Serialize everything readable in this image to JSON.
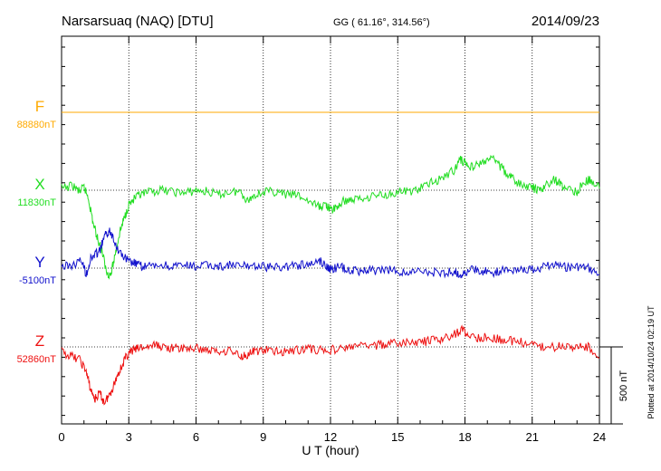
{
  "header": {
    "station": "Narsarsuaq (NAQ)  [DTU]",
    "coords": "GG ( 61.16°, 314.56°)",
    "date": "2014/09/23"
  },
  "side_note": "Plotted at 2014/10/24 02:19 UT",
  "chart_data": {
    "type": "line",
    "xlabel": "U T (hour)",
    "xlim": [
      0,
      24
    ],
    "xticks": [
      0,
      3,
      6,
      9,
      12,
      15,
      18,
      21,
      24
    ],
    "grid": "dotted vertical every 3 h; dotted baseline per component",
    "scale_bar": {
      "label": "500 nT",
      "value_nT": 500
    },
    "series": [
      {
        "name": "F",
        "baseline_label": "88880nT",
        "baseline_nT": 88880,
        "color": "#ffaa00",
        "x": [
          0,
          24
        ],
        "y": [
          88880,
          88880
        ]
      },
      {
        "name": "X",
        "baseline_label": "11830nT",
        "baseline_nT": 11830,
        "color": "#22dd22",
        "x": [
          0,
          0.5,
          0.8,
          1.0,
          1.2,
          1.4,
          1.6,
          1.8,
          2.0,
          2.2,
          2.4,
          2.6,
          2.8,
          3.0,
          3.3,
          3.6,
          4.0,
          4.5,
          5.0,
          5.5,
          6.0,
          6.5,
          7.0,
          7.5,
          8.0,
          8.3,
          8.6,
          9.0,
          9.5,
          10.0,
          10.5,
          11.0,
          11.5,
          11.8,
          12.0,
          12.3,
          12.6,
          13.0,
          13.5,
          14.0,
          14.5,
          15.0,
          15.5,
          16.0,
          16.5,
          17.0,
          17.5,
          17.8,
          18.0,
          18.3,
          18.6,
          19.0,
          19.3,
          19.6,
          20.0,
          20.3,
          20.6,
          21.0,
          21.3,
          21.6,
          22.0,
          22.3,
          22.6,
          23.0,
          23.3,
          23.6,
          24.0
        ],
        "y": [
          11840,
          11860,
          11820,
          11850,
          11780,
          11620,
          11520,
          11440,
          11300,
          11280,
          11420,
          11560,
          11650,
          11740,
          11780,
          11800,
          11820,
          11830,
          11820,
          11810,
          11830,
          11820,
          11800,
          11820,
          11820,
          11760,
          11800,
          11820,
          11820,
          11800,
          11800,
          11760,
          11720,
          11740,
          11700,
          11720,
          11760,
          11770,
          11780,
          11800,
          11800,
          11820,
          11820,
          11840,
          11880,
          11910,
          11960,
          12030,
          12010,
          11980,
          12000,
          12020,
          12040,
          11980,
          11920,
          11880,
          11860,
          11850,
          11820,
          11860,
          11900,
          11860,
          11840,
          11820,
          11880,
          11900,
          11840
        ]
      },
      {
        "name": "Y",
        "baseline_label": "-5100nT",
        "baseline_nT": -5100,
        "color": "#1010cc",
        "x": [
          0,
          0.5,
          0.9,
          1.1,
          1.3,
          1.5,
          1.7,
          1.9,
          2.1,
          2.3,
          2.5,
          2.8,
          3.0,
          3.3,
          3.6,
          4.0,
          4.5,
          5.0,
          5.5,
          6.0,
          6.5,
          7.0,
          7.5,
          8.0,
          8.5,
          9.0,
          9.5,
          10.0,
          10.5,
          11.0,
          11.5,
          11.8,
          12.0,
          12.4,
          12.8,
          13.2,
          13.6,
          14.0,
          14.5,
          15.0,
          15.5,
          16.0,
          16.5,
          17.0,
          17.5,
          17.8,
          18.0,
          18.4,
          18.8,
          19.2,
          19.6,
          20.0,
          20.5,
          21.0,
          21.5,
          22.0,
          22.5,
          23.0,
          23.5,
          24.0
        ],
        "y": [
          -5090,
          -5080,
          -5050,
          -5140,
          -5040,
          -5010,
          -4990,
          -4900,
          -4860,
          -4890,
          -4980,
          -5030,
          -5060,
          -5070,
          -5090,
          -5090,
          -5080,
          -5090,
          -5085,
          -5090,
          -5080,
          -5090,
          -5080,
          -5090,
          -5080,
          -5090,
          -5095,
          -5090,
          -5080,
          -5080,
          -5050,
          -5080,
          -5110,
          -5090,
          -5110,
          -5120,
          -5110,
          -5120,
          -5110,
          -5120,
          -5130,
          -5120,
          -5125,
          -5130,
          -5120,
          -5140,
          -5130,
          -5110,
          -5120,
          -5130,
          -5115,
          -5110,
          -5100,
          -5110,
          -5090,
          -5080,
          -5095,
          -5090,
          -5100,
          -5140
        ]
      },
      {
        "name": "Z",
        "baseline_label": "52860nT",
        "baseline_nT": 52860,
        "color": "#ee1111",
        "x": [
          0,
          0.4,
          0.8,
          1.1,
          1.3,
          1.5,
          1.7,
          1.9,
          2.1,
          2.3,
          2.5,
          2.7,
          2.9,
          3.1,
          3.4,
          3.8,
          4.2,
          4.6,
          5.0,
          5.5,
          6.0,
          6.5,
          7.0,
          7.5,
          8.0,
          8.3,
          8.6,
          9.0,
          9.5,
          10.0,
          10.5,
          11.0,
          11.5,
          12.0,
          12.5,
          13.0,
          13.5,
          14.0,
          14.5,
          15.0,
          15.5,
          16.0,
          16.5,
          17.0,
          17.5,
          17.9,
          18.2,
          18.6,
          19.0,
          19.5,
          20.0,
          20.5,
          21.0,
          21.5,
          22.0,
          22.5,
          23.0,
          23.5,
          24.0
        ],
        "y": [
          52830,
          52800,
          52780,
          52700,
          52580,
          52520,
          52560,
          52500,
          52540,
          52600,
          52680,
          52740,
          52800,
          52830,
          52850,
          52860,
          52870,
          52860,
          52850,
          52850,
          52850,
          52840,
          52830,
          52840,
          52800,
          52810,
          52830,
          52840,
          52830,
          52830,
          52840,
          52850,
          52840,
          52840,
          52850,
          52860,
          52870,
          52870,
          52880,
          52880,
          52890,
          52890,
          52900,
          52910,
          52940,
          52970,
          52930,
          52920,
          52920,
          52910,
          52900,
          52890,
          52870,
          52860,
          52860,
          52870,
          52860,
          52860,
          52790
        ]
      }
    ]
  }
}
